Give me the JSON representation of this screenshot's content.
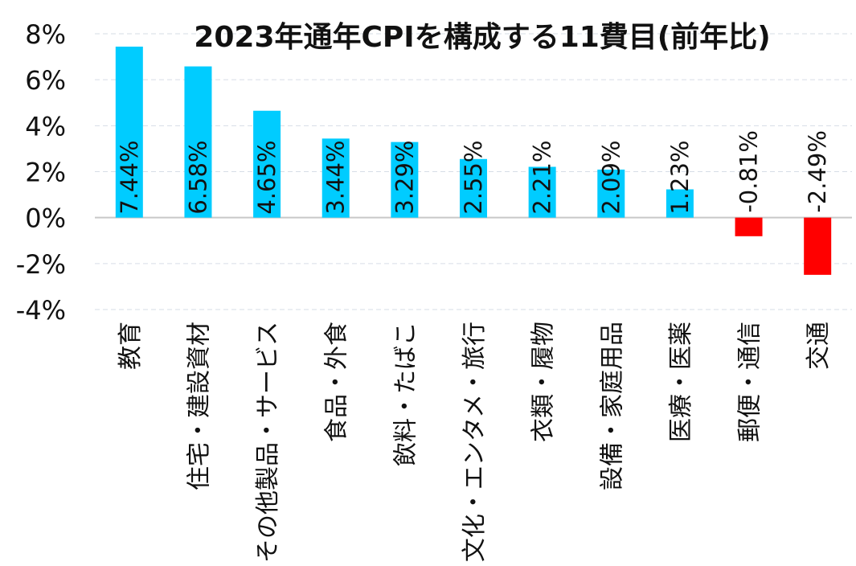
{
  "chart_data": {
    "type": "bar",
    "title": "2023年通年CPIを構成する11費目(前年比)",
    "categories": [
      "教育",
      "住宅・建設資材",
      "その他製品・サービス",
      "食品・外食",
      "飲料・たばこ",
      "文化・エンタメ・旅行",
      "衣類・履物",
      "設備・家庭用品",
      "医療・医薬",
      "郵便・通信",
      "交通"
    ],
    "values": [
      7.44,
      6.58,
      4.65,
      3.44,
      3.29,
      2.55,
      2.21,
      2.09,
      1.23,
      -0.81,
      -2.49
    ],
    "data_labels": [
      "7.44%",
      "6.58%",
      "4.65%",
      "3.44%",
      "3.29%",
      "2.55%",
      "2.21%",
      "2.09%",
      "1.23%",
      "-0.81%",
      "-2.49%"
    ],
    "ylim": [
      -4,
      8
    ],
    "yticks": [
      8,
      6,
      4,
      2,
      0,
      -2,
      -4
    ],
    "ytick_labels": [
      "8%",
      "6%",
      "4%",
      "2%",
      "0%",
      "-2%",
      "-4%"
    ],
    "grid": true,
    "colors": {
      "positive": "#00CCFF",
      "negative": "#FF0000"
    }
  }
}
